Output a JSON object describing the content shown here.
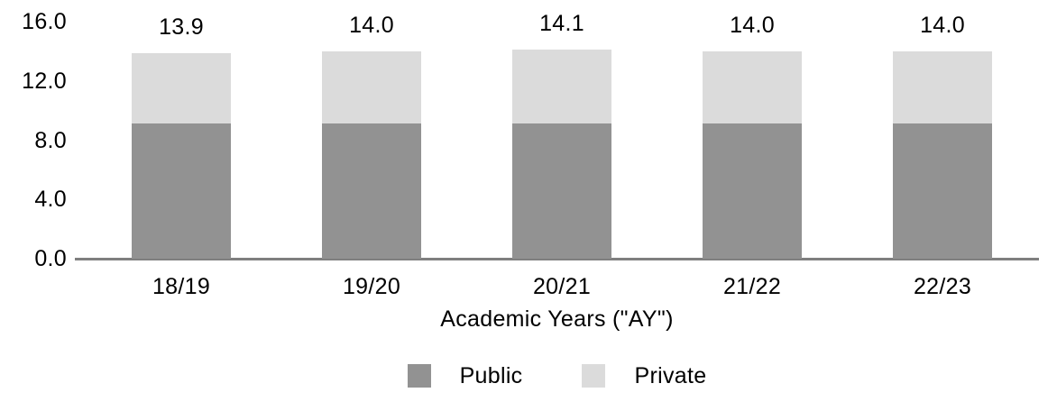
{
  "chart_data": {
    "type": "bar",
    "stacked": true,
    "title": "",
    "xlabel": "Academic Years (\"AY\")",
    "ylabel": "",
    "categories": [
      "18/19",
      "19/20",
      "20/21",
      "21/22",
      "22/23"
    ],
    "series": [
      {
        "name": "Public",
        "color": "#929292",
        "values": [
          9.1,
          9.1,
          9.1,
          9.1,
          9.1
        ]
      },
      {
        "name": "Private",
        "color": "#dbdbdb",
        "values": [
          4.8,
          4.9,
          5.0,
          4.9,
          4.9
        ]
      }
    ],
    "totals_labels": [
      "13.9",
      "14.0",
      "14.1",
      "14.0",
      "14.0"
    ],
    "ylim": [
      0,
      16
    ],
    "yticks": [
      {
        "value": 16,
        "label": "16.0"
      },
      {
        "value": 12,
        "label": "12.0"
      },
      {
        "value": 8,
        "label": "8.0"
      },
      {
        "value": 4,
        "label": "4.0"
      },
      {
        "value": 0,
        "label": "0.0"
      }
    ],
    "grid": false,
    "legend_position": "bottom",
    "axis_line_color": "#7f7f7f"
  }
}
